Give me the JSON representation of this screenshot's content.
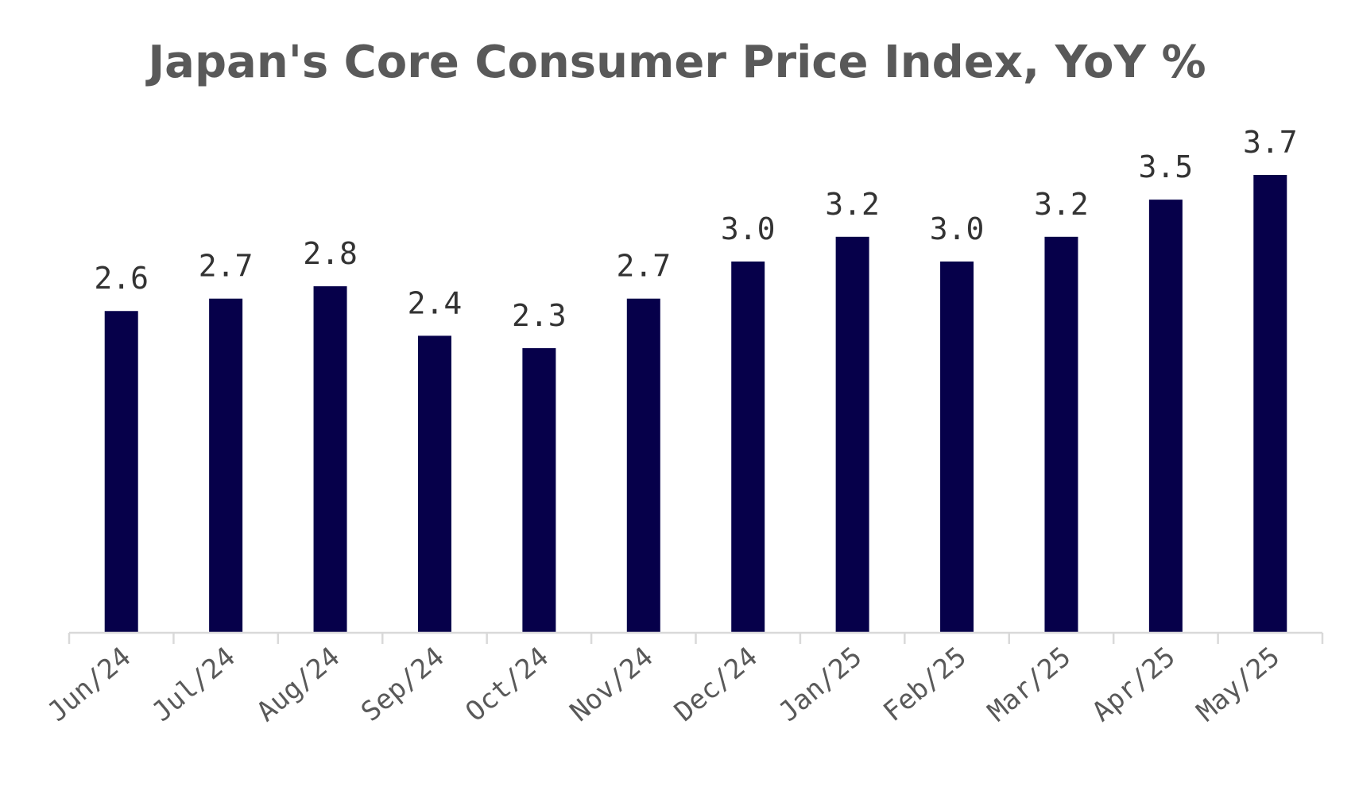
{
  "chart_data": {
    "type": "bar",
    "title": "Japan's Core Consumer Price Index, YoY %",
    "categories": [
      "Jun/24",
      "Jul/24",
      "Aug/24",
      "Sep/24",
      "Oct/24",
      "Nov/24",
      "Dec/24",
      "Jan/25",
      "Feb/25",
      "Mar/25",
      "Apr/25",
      "May/25"
    ],
    "values": [
      2.6,
      2.7,
      2.8,
      2.4,
      2.3,
      2.7,
      3.0,
      3.2,
      3.0,
      3.2,
      3.5,
      3.7
    ],
    "data_labels": [
      "2.6",
      "2.7",
      "2.8",
      "2.4",
      "2.3",
      "2.7",
      "3.0",
      "3.2",
      "3.0",
      "3.2",
      "3.5",
      "3.7"
    ],
    "xlabel": "",
    "ylabel": "",
    "ylim": [
      0,
      3.7
    ],
    "grid": false,
    "legend": "none",
    "bar_color": "#06004a"
  }
}
